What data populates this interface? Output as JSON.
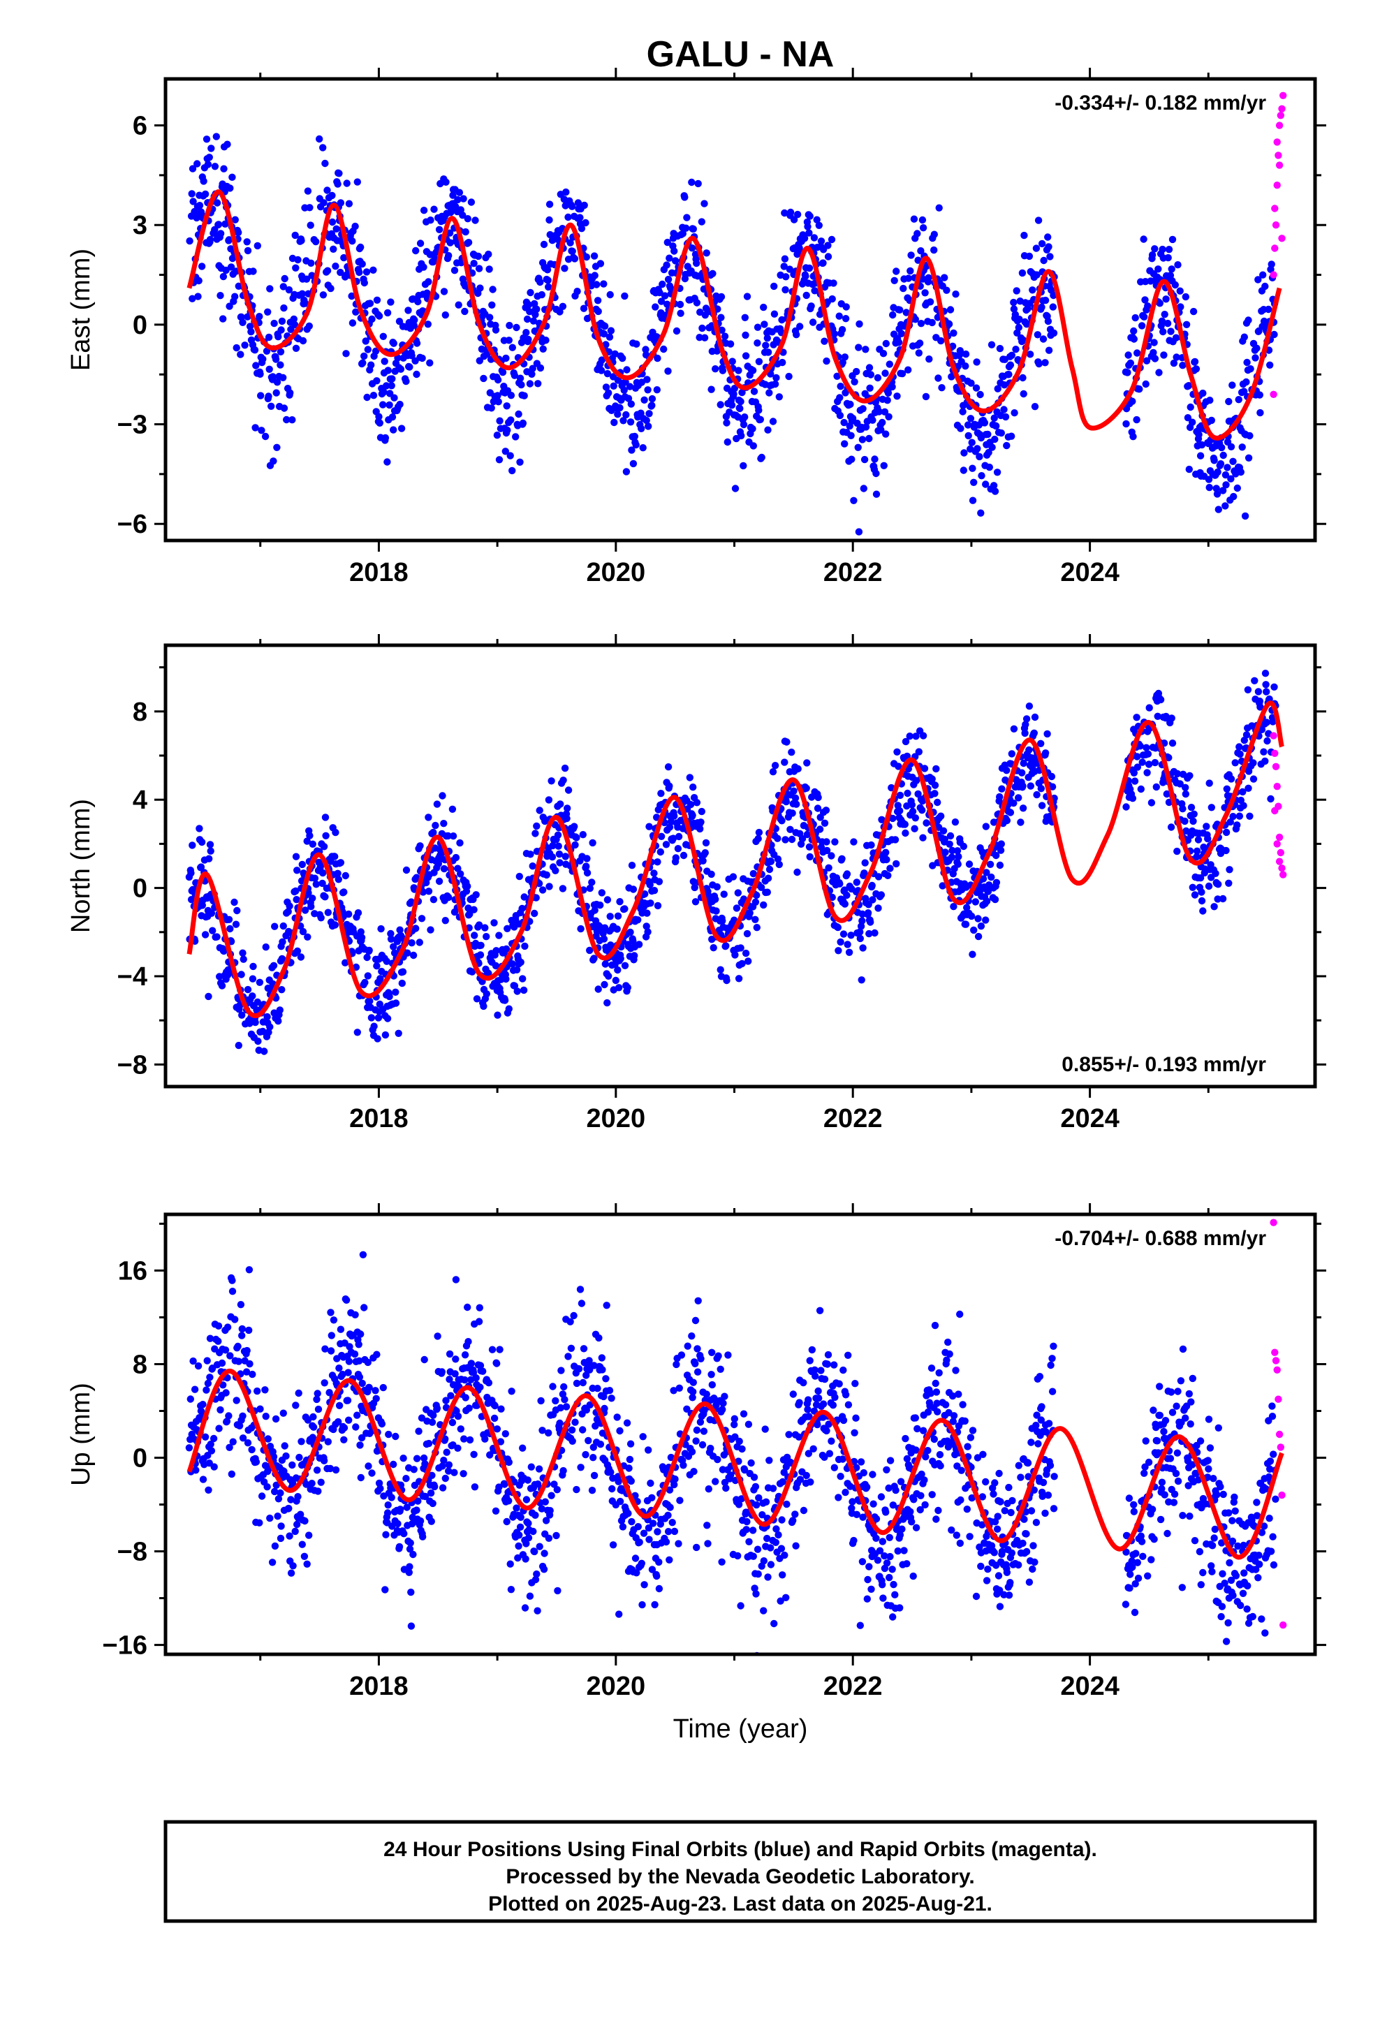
{
  "title": "GALU - NA",
  "colors": {
    "final_orbits": "#0000ff",
    "rapid_orbits": "#ff00ff",
    "model_fit": "#ff0000",
    "axes": "#000000"
  },
  "xlabel": "Time (year)",
  "footer": {
    "line1": "24 Hour Positions Using Final Orbits (blue) and Rapid Orbits (magenta).",
    "line2": "Processed by the Nevada Geodetic Laboratory.",
    "line3": "Plotted on 2025-Aug-23. Last data on 2025-Aug-21."
  },
  "chart_data": [
    {
      "type": "scatter",
      "component": "east",
      "ylabel": "East (mm)",
      "rate_text": "-0.334+/- 0.182 mm/yr",
      "rate_position": "top-right",
      "xlim": [
        2016.2,
        2025.9
      ],
      "ylim": [
        -6.5,
        7.4
      ],
      "xticks": [
        2018,
        2020,
        2022,
        2024
      ],
      "yticks": [
        -6,
        -3,
        0,
        3,
        6
      ],
      "trend": {
        "slope": -0.334,
        "value_at_2021": -0.3
      },
      "seasonal_amplitude": 2.4,
      "seasonal_peak_frac": 0.6,
      "scatter_sd": 1.1,
      "data_span": [
        2016.4,
        2025.63
      ],
      "gaps": [
        [
          2023.7,
          2024.3
        ]
      ],
      "model_line": {
        "x": [
          2016.4,
          2016.65,
          2016.9,
          2017.1,
          2017.4,
          2017.62,
          2017.85,
          2018.1,
          2018.4,
          2018.62,
          2018.85,
          2019.1,
          2019.4,
          2019.62,
          2019.85,
          2020.1,
          2020.4,
          2020.65,
          2020.9,
          2021.1,
          2021.4,
          2021.62,
          2021.85,
          2022.1,
          2022.4,
          2022.62,
          2022.85,
          2023.1,
          2023.4,
          2023.65,
          2023.85,
          2024.0,
          2024.35,
          2024.62,
          2024.85,
          2025.05,
          2025.35,
          2025.6
        ],
        "y": [
          1.1,
          4.0,
          0.6,
          -0.7,
          0.4,
          3.6,
          0.4,
          -0.9,
          0.3,
          3.2,
          0.0,
          -1.3,
          0.1,
          3.0,
          -0.4,
          -1.6,
          -0.3,
          2.6,
          -0.8,
          -1.9,
          -0.6,
          2.3,
          -1.0,
          -2.3,
          -1.0,
          2.0,
          -1.3,
          -2.6,
          -1.4,
          1.6,
          -1.3,
          -3.1,
          -2.0,
          1.3,
          -1.5,
          -3.4,
          -2.2,
          1.1
        ]
      },
      "rapid_points": {
        "x": [
          2025.55,
          2025.56,
          2025.57,
          2025.58,
          2025.59,
          2025.6,
          2025.61,
          2025.62,
          2025.63,
          2025.55,
          2025.56,
          2025.58,
          2025.6,
          2025.62
        ],
        "y": [
          -2.1,
          2.3,
          3.0,
          4.2,
          5.1,
          6.0,
          6.3,
          6.5,
          6.9,
          1.5,
          3.5,
          5.5,
          4.8,
          2.6
        ]
      }
    },
    {
      "type": "scatter",
      "component": "north",
      "ylabel": "North (mm)",
      "rate_text": "0.855+/- 0.193 mm/yr",
      "rate_position": "bottom-right",
      "xlim": [
        2016.2,
        2025.9
      ],
      "ylim": [
        -9.0,
        11.0
      ],
      "xticks": [
        2018,
        2020,
        2022,
        2024
      ],
      "yticks": [
        -8,
        -4,
        0,
        4,
        8
      ],
      "trend": {
        "slope": 0.855,
        "value_at_2021": 0.8
      },
      "seasonal_amplitude": 3.0,
      "seasonal_peak_frac": 0.5,
      "scatter_sd": 1.2,
      "data_span": [
        2016.4,
        2025.63
      ],
      "gaps": [
        [
          2023.7,
          2024.3
        ]
      ],
      "model_line": {
        "x": [
          2016.4,
          2016.55,
          2016.9,
          2017.2,
          2017.5,
          2017.85,
          2018.2,
          2018.5,
          2018.85,
          2019.2,
          2019.5,
          2019.85,
          2020.15,
          2020.5,
          2020.85,
          2021.15,
          2021.5,
          2021.85,
          2022.15,
          2022.5,
          2022.85,
          2023.15,
          2023.5,
          2023.85,
          2024.15,
          2024.5,
          2024.85,
          2025.15,
          2025.5,
          2025.62
        ],
        "y": [
          -3.0,
          0.6,
          -5.6,
          -3.7,
          1.5,
          -4.7,
          -2.8,
          2.3,
          -3.9,
          -2.0,
          3.2,
          -3.0,
          -1.0,
          4.1,
          -2.2,
          -0.2,
          4.9,
          -1.3,
          0.7,
          5.8,
          -0.5,
          1.6,
          6.7,
          0.4,
          2.4,
          7.5,
          1.3,
          3.3,
          8.3,
          6.4
        ]
      },
      "rapid_points": {
        "x": [
          2025.55,
          2025.56,
          2025.57,
          2025.58,
          2025.59,
          2025.6,
          2025.61,
          2025.62,
          2025.63,
          2025.56,
          2025.58,
          2025.6
        ],
        "y": [
          6.9,
          6.1,
          5.5,
          4.6,
          3.7,
          2.3,
          1.6,
          0.9,
          0.6,
          3.5,
          2.0,
          1.2
        ]
      }
    },
    {
      "type": "scatter",
      "component": "up",
      "ylabel": "Up (mm)",
      "rate_text": "-0.704+/- 0.688 mm/yr",
      "rate_position": "top-right",
      "xlim": [
        2016.2,
        2025.9
      ],
      "ylim": [
        -16.8,
        20.8
      ],
      "xticks": [
        2018,
        2020,
        2022,
        2024
      ],
      "yticks": [
        -16,
        -8,
        0,
        8,
        16
      ],
      "trend": {
        "slope": -0.704,
        "value_at_2021": -0.9
      },
      "seasonal_amplitude": 6.0,
      "seasonal_peak_frac": 0.75,
      "scatter_sd": 3.6,
      "data_span": [
        2016.4,
        2025.63
      ],
      "gaps": [
        [
          2023.7,
          2024.3
        ]
      ],
      "model_line": {
        "x": [
          2016.4,
          2016.75,
          2017.25,
          2017.75,
          2018.25,
          2018.75,
          2019.25,
          2019.75,
          2020.25,
          2020.75,
          2021.25,
          2021.75,
          2022.25,
          2022.75,
          2023.25,
          2023.75,
          2024.25,
          2024.75,
          2025.25,
          2025.62
        ],
        "y": [
          -1.2,
          7.4,
          -2.8,
          6.6,
          -3.6,
          6.0,
          -4.3,
          5.3,
          -5.0,
          4.6,
          -5.7,
          3.9,
          -6.4,
          3.2,
          -7.1,
          2.5,
          -7.8,
          1.8,
          -8.5,
          0.4
        ]
      },
      "rapid_points": {
        "x": [
          2025.55,
          2025.56,
          2025.57,
          2025.58,
          2025.59,
          2025.6,
          2025.61,
          2025.62,
          2025.63
        ],
        "y": [
          20.1,
          9.0,
          8.3,
          7.5,
          5.0,
          2.0,
          0.9,
          -3.2,
          -14.3
        ]
      }
    }
  ]
}
